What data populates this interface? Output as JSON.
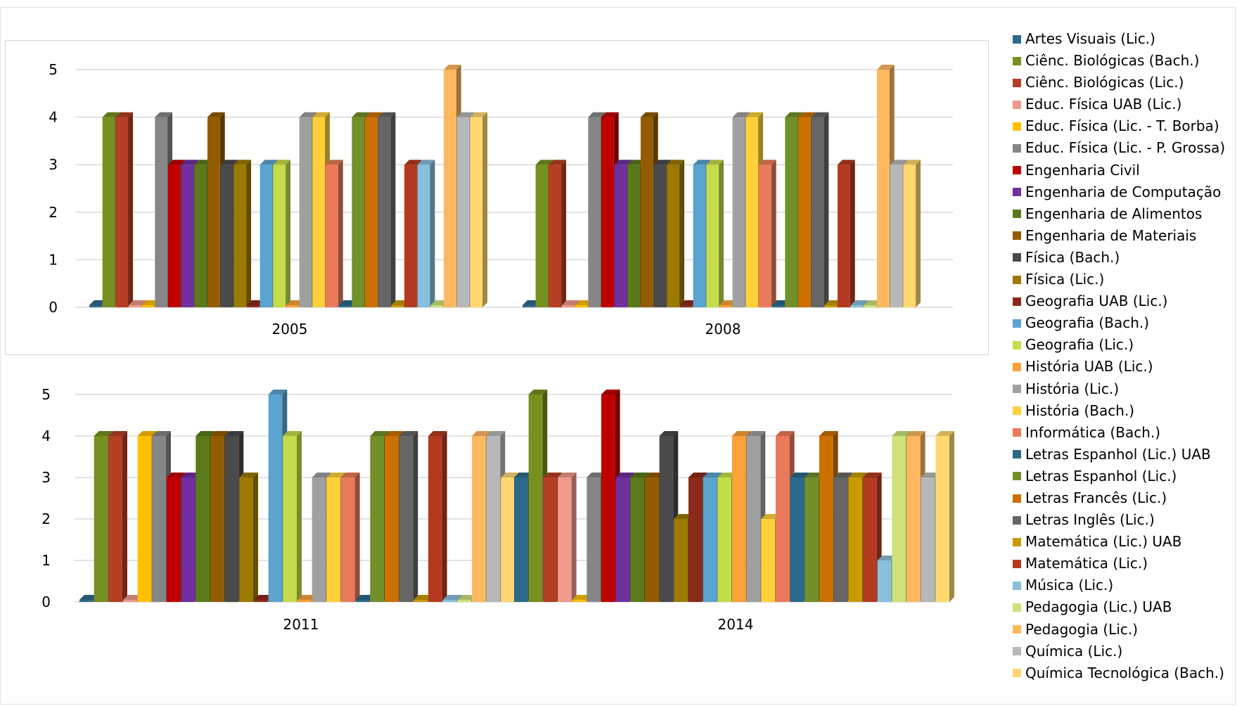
{
  "chart_data": {
    "type": "bar",
    "style": "3d-clustered-column",
    "legend_position": "right",
    "grid": true,
    "ylim": [
      0,
      5
    ],
    "yticks": [
      "0",
      "1",
      "2",
      "3",
      "4",
      "5"
    ],
    "series_names": [
      "Artes Visuais (Lic.)",
      "Ciênc. Biológicas (Bach.)",
      "Ciênc. Biológicas (Lic.)",
      "Educ. Física UAB (Lic.)",
      "Educ. Física (Lic. - T. Borba)",
      "Educ. Física (Lic. - P. Grossa)",
      "Engenharia Civil",
      "Engenharia de Computação",
      "Engenharia de Alimentos",
      "Engenharia de Materiais",
      "Física (Bach.)",
      "Física (Lic.)",
      "Geografia UAB (Lic.)",
      "Geografia (Bach.)",
      "Geografia (Lic.)",
      "História UAB (Lic.)",
      "História (Lic.)",
      "História (Bach.)",
      "Informática (Bach.)",
      "Letras Espanhol (Lic.) UAB",
      "Letras Espanhol (Lic.)",
      "Letras Francês (Lic.)",
      "Letras Inglês (Lic.)",
      "Matemática (Lic.) UAB",
      "Matemática (Lic.)",
      "Música (Lic.)",
      "Pedagogia (Lic.) UAB",
      "Pedagogia (Lic.)",
      "Química (Lic.)",
      "Química Tecnológica (Bach.)"
    ],
    "series_colors": [
      "#2e6a8c",
      "#77901f",
      "#b53f24",
      "#ef9a8a",
      "#ffc000",
      "#868686",
      "#c00000",
      "#7030a0",
      "#5a7a1a",
      "#935b00",
      "#4a4a4a",
      "#9c7a00",
      "#8b2a1a",
      "#5ba4cf",
      "#c5dc4a",
      "#f9a23a",
      "#a0a0a0",
      "#ffd03a",
      "#ea7a5a",
      "#2a6a8a",
      "#72902a",
      "#cc7000",
      "#666666",
      "#c99a00",
      "#b33a20",
      "#88c0dc",
      "#cde27a",
      "#ffb860",
      "#b8b8b8",
      "#ffd870"
    ],
    "panels": [
      {
        "category": "2005",
        "values": [
          0,
          4,
          4,
          0,
          0,
          4,
          3,
          3,
          3,
          4,
          3,
          3,
          0,
          3,
          3,
          0,
          4,
          4,
          3,
          0,
          4,
          4,
          4,
          0,
          3,
          3,
          0,
          5,
          4,
          4
        ]
      },
      {
        "category": "2008",
        "values": [
          0,
          3,
          3,
          0,
          0,
          4,
          4,
          3,
          3,
          4,
          3,
          3,
          0,
          3,
          3,
          0,
          4,
          4,
          3,
          0,
          4,
          4,
          4,
          0,
          3,
          0,
          0,
          5,
          3,
          3
        ]
      },
      {
        "category": "2011",
        "values": [
          0,
          4,
          4,
          0,
          4,
          4,
          3,
          3,
          4,
          4,
          4,
          3,
          0,
          5,
          4,
          0,
          3,
          3,
          3,
          0,
          4,
          4,
          4,
          0,
          4,
          0,
          0,
          4,
          4,
          3
        ]
      },
      {
        "category": "2014",
        "values": [
          3,
          5,
          3,
          3,
          0,
          3,
          5,
          3,
          3,
          3,
          4,
          2,
          3,
          3,
          3,
          4,
          4,
          2,
          4,
          3,
          3,
          4,
          3,
          3,
          3,
          1,
          4,
          4,
          3,
          4
        ]
      }
    ]
  }
}
